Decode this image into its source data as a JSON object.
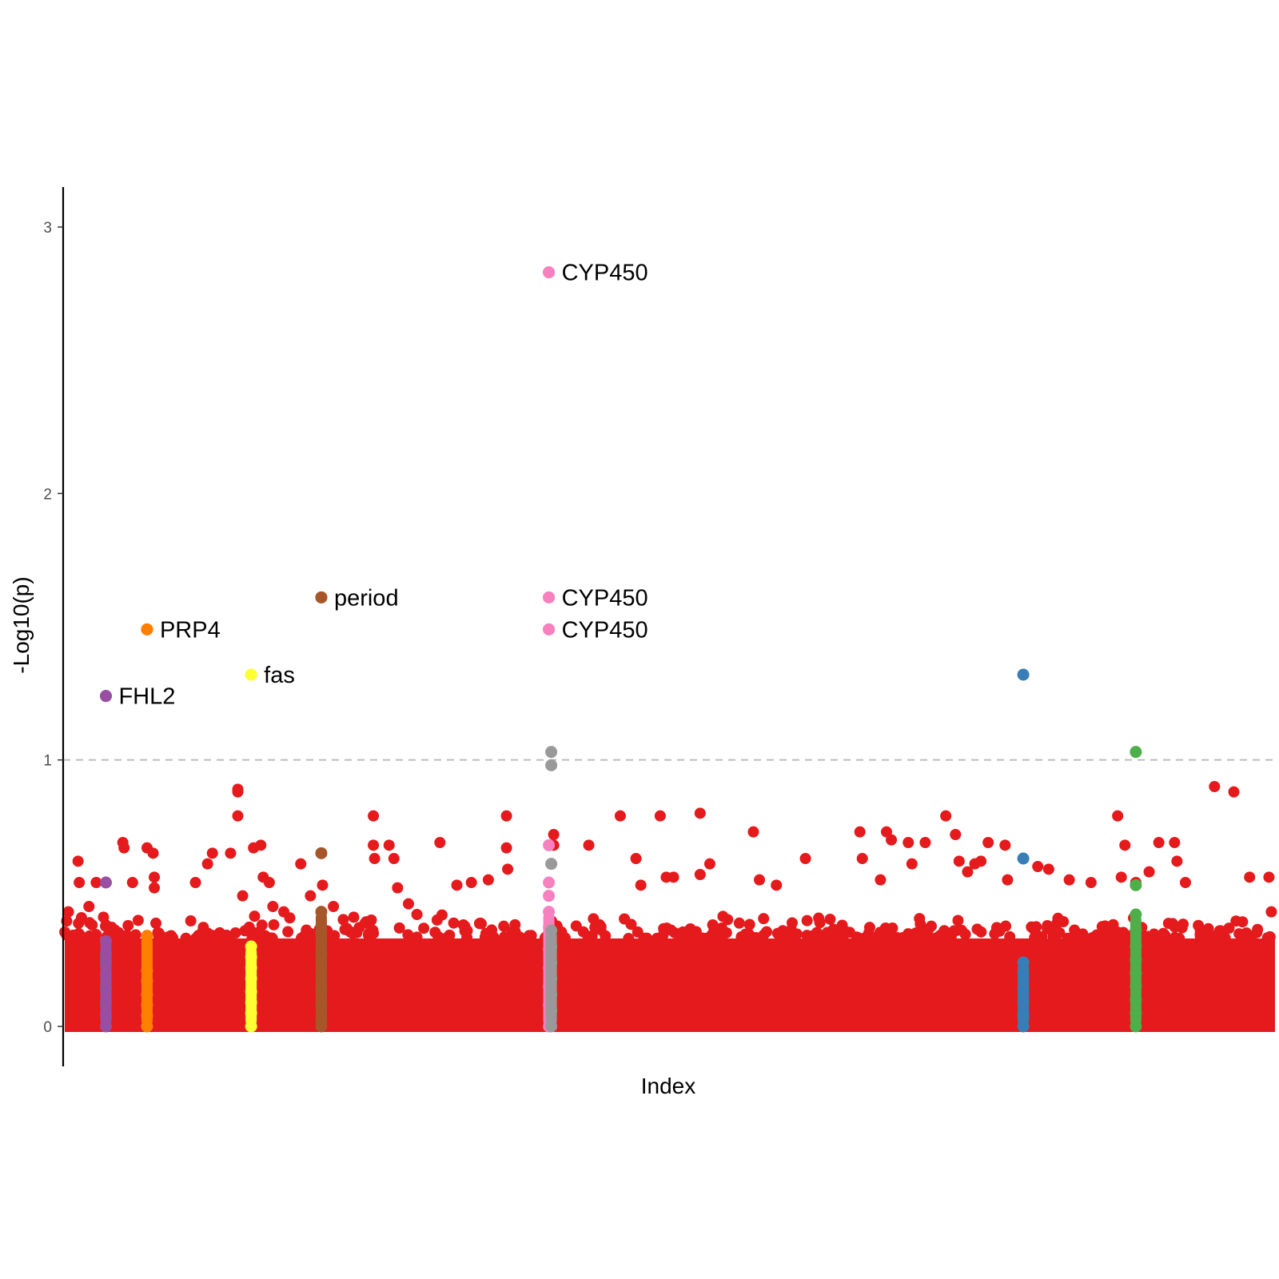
{
  "chart_data": {
    "type": "scatter",
    "title": "",
    "xlabel": "Index",
    "ylabel": "-Log10(p)",
    "ylim": [
      -0.15,
      3.15
    ],
    "xlim": [
      0,
      100
    ],
    "yticks": [
      0,
      1,
      2,
      3
    ],
    "threshold": 1,
    "grid": false,
    "legend": "none",
    "colors": {
      "background": "#e41a1c",
      "FHL2": "#984ea3",
      "PRP4": "#ff7f00",
      "fas": "#ffff33",
      "period": "#a65628",
      "CYP450": "#f781bf",
      "gray_group": "#999999",
      "blue_group": "#377eb8",
      "green_group": "#4daf4a",
      "threshold_line": "#bdbdbd"
    },
    "background_series": {
      "dense_band_max": 0.33,
      "points": [
        {
          "x": 0.3,
          "y": 0.43
        },
        {
          "x": 1.1,
          "y": 0.62
        },
        {
          "x": 1.2,
          "y": 0.54
        },
        {
          "x": 2.0,
          "y": 0.45
        },
        {
          "x": 2.6,
          "y": 0.54
        },
        {
          "x": 3.2,
          "y": 0.41
        },
        {
          "x": 4.8,
          "y": 0.69
        },
        {
          "x": 4.9,
          "y": 0.67
        },
        {
          "x": 5.6,
          "y": 0.54
        },
        {
          "x": 6.8,
          "y": 0.67
        },
        {
          "x": 7.3,
          "y": 0.65
        },
        {
          "x": 7.4,
          "y": 0.56
        },
        {
          "x": 7.4,
          "y": 0.52
        },
        {
          "x": 10.8,
          "y": 0.54
        },
        {
          "x": 11.8,
          "y": 0.61
        },
        {
          "x": 12.2,
          "y": 0.65
        },
        {
          "x": 13.7,
          "y": 0.65
        },
        {
          "x": 14.3,
          "y": 0.89
        },
        {
          "x": 14.3,
          "y": 0.88
        },
        {
          "x": 14.3,
          "y": 0.79
        },
        {
          "x": 14.7,
          "y": 0.49
        },
        {
          "x": 15.6,
          "y": 0.67
        },
        {
          "x": 16.2,
          "y": 0.68
        },
        {
          "x": 16.4,
          "y": 0.56
        },
        {
          "x": 16.9,
          "y": 0.54
        },
        {
          "x": 17.2,
          "y": 0.45
        },
        {
          "x": 18.1,
          "y": 0.43
        },
        {
          "x": 19.5,
          "y": 0.61
        },
        {
          "x": 20.3,
          "y": 0.49
        },
        {
          "x": 21.3,
          "y": 0.53
        },
        {
          "x": 22.2,
          "y": 0.45
        },
        {
          "x": 25.5,
          "y": 0.79
        },
        {
          "x": 25.5,
          "y": 0.68
        },
        {
          "x": 25.6,
          "y": 0.63
        },
        {
          "x": 26.8,
          "y": 0.68
        },
        {
          "x": 27.2,
          "y": 0.63
        },
        {
          "x": 27.5,
          "y": 0.52
        },
        {
          "x": 28.4,
          "y": 0.46
        },
        {
          "x": 29.1,
          "y": 0.42
        },
        {
          "x": 31.0,
          "y": 0.69
        },
        {
          "x": 32.4,
          "y": 0.53
        },
        {
          "x": 33.6,
          "y": 0.54
        },
        {
          "x": 35.0,
          "y": 0.55
        },
        {
          "x": 36.5,
          "y": 0.79
        },
        {
          "x": 36.5,
          "y": 0.67
        },
        {
          "x": 36.6,
          "y": 0.59
        },
        {
          "x": 40.4,
          "y": 0.72
        },
        {
          "x": 40.4,
          "y": 0.68
        },
        {
          "x": 43.3,
          "y": 0.68
        },
        {
          "x": 45.9,
          "y": 0.79
        },
        {
          "x": 47.2,
          "y": 0.63
        },
        {
          "x": 47.6,
          "y": 0.53
        },
        {
          "x": 49.2,
          "y": 0.79
        },
        {
          "x": 49.7,
          "y": 0.56
        },
        {
          "x": 50.3,
          "y": 0.56
        },
        {
          "x": 52.5,
          "y": 0.8
        },
        {
          "x": 52.5,
          "y": 0.57
        },
        {
          "x": 53.3,
          "y": 0.61
        },
        {
          "x": 56.9,
          "y": 0.73
        },
        {
          "x": 57.4,
          "y": 0.55
        },
        {
          "x": 58.8,
          "y": 0.53
        },
        {
          "x": 61.2,
          "y": 0.63
        },
        {
          "x": 65.7,
          "y": 0.73
        },
        {
          "x": 65.9,
          "y": 0.63
        },
        {
          "x": 67.4,
          "y": 0.55
        },
        {
          "x": 67.9,
          "y": 0.73
        },
        {
          "x": 68.3,
          "y": 0.7
        },
        {
          "x": 69.7,
          "y": 0.69
        },
        {
          "x": 70.0,
          "y": 0.61
        },
        {
          "x": 71.1,
          "y": 0.69
        },
        {
          "x": 72.8,
          "y": 0.79
        },
        {
          "x": 73.6,
          "y": 0.72
        },
        {
          "x": 73.9,
          "y": 0.62
        },
        {
          "x": 74.6,
          "y": 0.58
        },
        {
          "x": 75.2,
          "y": 0.61
        },
        {
          "x": 75.7,
          "y": 0.62
        },
        {
          "x": 76.3,
          "y": 0.69
        },
        {
          "x": 77.7,
          "y": 0.68
        },
        {
          "x": 77.9,
          "y": 0.55
        },
        {
          "x": 80.4,
          "y": 0.6
        },
        {
          "x": 81.3,
          "y": 0.59
        },
        {
          "x": 83.0,
          "y": 0.55
        },
        {
          "x": 84.8,
          "y": 0.54
        },
        {
          "x": 87.0,
          "y": 0.79
        },
        {
          "x": 87.3,
          "y": 0.56
        },
        {
          "x": 87.6,
          "y": 0.68
        },
        {
          "x": 88.5,
          "y": 0.54
        },
        {
          "x": 89.6,
          "y": 0.58
        },
        {
          "x": 90.4,
          "y": 0.69
        },
        {
          "x": 91.7,
          "y": 0.69
        },
        {
          "x": 91.9,
          "y": 0.62
        },
        {
          "x": 92.6,
          "y": 0.54
        },
        {
          "x": 95.0,
          "y": 0.9
        },
        {
          "x": 96.6,
          "y": 0.88
        },
        {
          "x": 97.9,
          "y": 0.56
        },
        {
          "x": 99.5,
          "y": 0.56
        },
        {
          "x": 99.7,
          "y": 0.43
        }
      ]
    },
    "highlight_groups": [
      {
        "name": "FHL2",
        "color": "#984ea3",
        "x": 3.4,
        "values": [
          1.24,
          0.54,
          0.32,
          0.27,
          0.24,
          0.19,
          0.14,
          0.09,
          0.04,
          0.0
        ]
      },
      {
        "name": "PRP4",
        "color": "#ff7f00",
        "x": 6.8,
        "values": [
          1.49,
          0.34,
          0.21,
          0.17,
          0.12,
          0.08,
          0.04,
          0.0
        ]
      },
      {
        "name": "fas",
        "color": "#ffff33",
        "x": 15.4,
        "values": [
          1.32,
          0.3,
          0.26,
          0.22,
          0.18,
          0.13,
          0.09,
          0.05,
          0.0
        ]
      },
      {
        "name": "period",
        "color": "#a65628",
        "x": 21.2,
        "values": [
          1.61,
          0.65,
          0.43,
          0.35,
          0.27,
          0.19,
          0.14,
          0.08,
          0.02,
          0.0
        ]
      },
      {
        "name": "CYP450",
        "color": "#f781bf",
        "x": 40.0,
        "values": [
          2.83,
          1.61,
          1.49,
          0.68,
          0.54,
          0.49,
          0.43,
          0.37,
          0.29,
          0.22,
          0.15,
          0.08,
          0.0
        ]
      },
      {
        "name": "",
        "color": "#999999",
        "x": 40.2,
        "values": [
          1.03,
          0.98,
          0.61,
          0.36,
          0.3,
          0.24,
          0.18,
          0.12,
          0.06,
          0.0
        ]
      },
      {
        "name": "",
        "color": "#377eb8",
        "x": 79.2,
        "values": [
          1.32,
          0.63,
          0.24,
          0.2,
          0.14,
          0.09,
          0.04,
          0.0
        ]
      },
      {
        "name": "",
        "color": "#4daf4a",
        "x": 88.5,
        "values": [
          1.03,
          0.53,
          0.42,
          0.36,
          0.3,
          0.25,
          0.2,
          0.15,
          0.1,
          0.05,
          0.0
        ]
      }
    ],
    "labeled_points": [
      {
        "label": "FHL2",
        "x": 3.4,
        "y": 1.24,
        "color": "#984ea3"
      },
      {
        "label": "PRP4",
        "x": 6.8,
        "y": 1.49,
        "color": "#ff7f00"
      },
      {
        "label": "fas",
        "x": 15.4,
        "y": 1.32,
        "color": "#ffff33"
      },
      {
        "label": "period",
        "x": 21.2,
        "y": 1.61,
        "color": "#a65628"
      },
      {
        "label": "CYP450",
        "x": 40.0,
        "y": 2.83,
        "color": "#f781bf"
      },
      {
        "label": "CYP450",
        "x": 40.0,
        "y": 1.61,
        "color": "#f781bf"
      },
      {
        "label": "CYP450",
        "x": 40.0,
        "y": 1.49,
        "color": "#f781bf"
      }
    ]
  }
}
